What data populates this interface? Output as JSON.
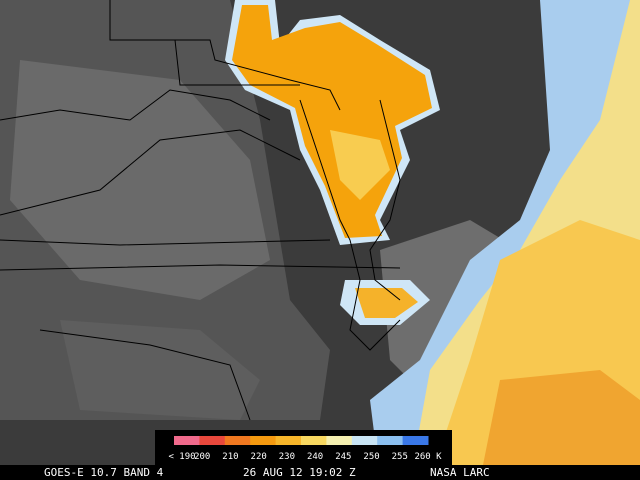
{
  "colorbar": {
    "labels": [
      "< 190",
      "200",
      "210",
      "220",
      "230",
      "240",
      "245",
      "250",
      "255",
      "260 K"
    ],
    "colors": [
      "#f06a8c",
      "#e8483c",
      "#f07820",
      "#f59a10",
      "#f7b62a",
      "#f8d860",
      "#f5f0b0",
      "#c8e4f4",
      "#8cc0f0",
      "#3a78e8"
    ]
  },
  "footer": {
    "satellite": "GOES-E 10.7 BAND 4",
    "timestamp": "26 AUG 12 19:02 Z",
    "source": "NASA LARC"
  }
}
